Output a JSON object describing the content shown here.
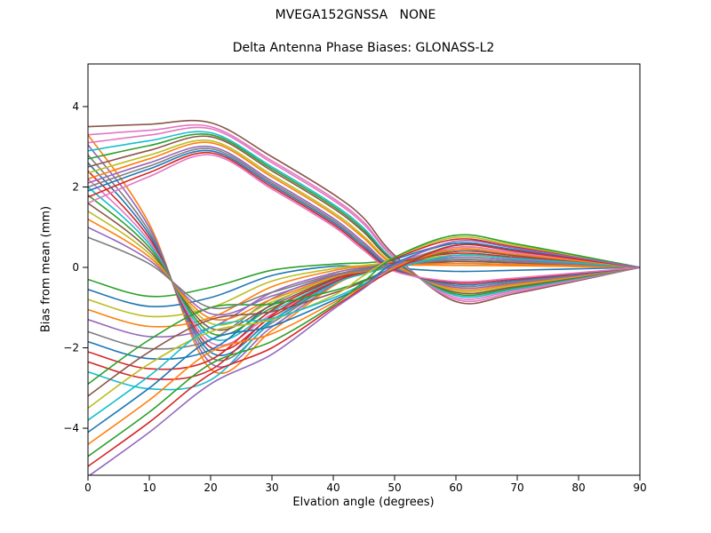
{
  "chart_data": {
    "type": "line",
    "suptitle": "MVEGA152GNSSA   NONE",
    "title": "Delta Antenna Phase Biases: GLONASS-L2",
    "xlabel": "Elvation angle (degrees)",
    "ylabel": "Bias from mean (mm)",
    "xlim": [
      0,
      90
    ],
    "ylim": [
      -5.17,
      5.06
    ],
    "xticks": [
      0,
      10,
      20,
      30,
      40,
      50,
      60,
      70,
      80,
      90
    ],
    "yticks": [
      -4,
      -2,
      0,
      2,
      4
    ],
    "grid": false,
    "legend": "none",
    "line_width": 1.6,
    "palette": [
      "#1f77b4",
      "#ff7f0e",
      "#2ca02c",
      "#d62728",
      "#9467bd",
      "#8c564b",
      "#e377c2",
      "#7f7f7f",
      "#bcbd22",
      "#17becf"
    ],
    "x": [
      0,
      10,
      20,
      30,
      40,
      45,
      50,
      60,
      70,
      90
    ],
    "series": [
      {
        "color": "#8c564b",
        "values": [
          3.5,
          3.56,
          3.6,
          2.75,
          1.82,
          1.22,
          0.3,
          -0.85,
          -0.64,
          0
        ]
      },
      {
        "color": "#ff7f0e",
        "values": [
          3.3,
          1.08,
          -2.53,
          -1.57,
          -0.46,
          -0.15,
          0.05,
          0.5,
          0.36,
          0
        ]
      },
      {
        "color": "#2ca02c",
        "values": [
          -0.3,
          -0.72,
          -0.5,
          -0.07,
          0.08,
          0.11,
          0.16,
          0.15,
          0.11,
          0
        ]
      },
      {
        "color": "#e377c2",
        "values": [
          3.3,
          3.41,
          3.5,
          2.65,
          1.72,
          1.12,
          0.25,
          -0.8,
          -0.6,
          0
        ]
      },
      {
        "color": "#9467bd",
        "values": [
          3.05,
          0.99,
          -2.38,
          -1.48,
          -0.43,
          -0.1,
          0.1,
          0.15,
          0.11,
          0
        ]
      },
      {
        "color": "#1f77b4",
        "values": [
          -0.55,
          -0.97,
          -0.75,
          -0.2,
          0.03,
          0.0,
          -0.02,
          -0.1,
          -0.07,
          0
        ]
      },
      {
        "color": "#e377c2",
        "values": [
          3.1,
          3.29,
          3.45,
          2.6,
          1.67,
          1.07,
          0.23,
          -0.75,
          -0.56,
          0
        ]
      },
      {
        "color": "#7f7f7f",
        "values": [
          2.8,
          0.89,
          -2.23,
          -1.38,
          -0.4,
          -0.12,
          0.06,
          0.4,
          0.29,
          0
        ]
      },
      {
        "color": "#bcbd22",
        "values": [
          -0.8,
          -1.22,
          -1.0,
          -0.34,
          -0.03,
          0.05,
          0.13,
          0.3,
          0.22,
          0
        ]
      },
      {
        "color": "#17becf",
        "values": [
          2.9,
          3.15,
          3.35,
          2.5,
          1.57,
          0.97,
          0.18,
          -0.7,
          -0.53,
          0
        ]
      },
      {
        "color": "#1f77b4",
        "values": [
          2.6,
          0.81,
          -2.11,
          -1.31,
          -0.38,
          -0.08,
          0.1,
          0.1,
          0.07,
          0
        ]
      },
      {
        "color": "#ff7f0e",
        "values": [
          -1.05,
          -1.47,
          -1.25,
          -0.48,
          -0.08,
          0.02,
          0.06,
          0.05,
          0.04,
          0
        ]
      },
      {
        "color": "#2ca02c",
        "values": [
          2.7,
          3.03,
          3.3,
          2.45,
          1.52,
          0.92,
          0.15,
          -0.66,
          -0.5,
          0
        ]
      },
      {
        "color": "#d62728",
        "values": [
          2.4,
          0.73,
          -1.99,
          -1.23,
          -0.36,
          -0.14,
          0.03,
          0.3,
          0.22,
          0
        ]
      },
      {
        "color": "#9467bd",
        "values": [
          -1.3,
          -1.72,
          -1.5,
          -0.62,
          -0.14,
          -0.01,
          0.1,
          0.45,
          0.32,
          0
        ]
      },
      {
        "color": "#8c564b",
        "values": [
          2.5,
          2.91,
          3.25,
          2.4,
          1.47,
          0.87,
          0.13,
          -0.62,
          -0.47,
          0
        ]
      },
      {
        "color": "#e377c2",
        "values": [
          2.2,
          0.65,
          -1.87,
          -1.16,
          -0.34,
          -0.06,
          0.12,
          0.5,
          0.36,
          0
        ]
      },
      {
        "color": "#7f7f7f",
        "values": [
          -1.6,
          -2.02,
          -1.8,
          -0.78,
          -0.2,
          -0.04,
          0.08,
          0.2,
          0.14,
          0
        ]
      },
      {
        "color": "#bcbd22",
        "values": [
          2.35,
          2.79,
          3.15,
          2.3,
          1.37,
          0.77,
          0.08,
          -0.58,
          -0.44,
          0
        ]
      },
      {
        "color": "#17becf",
        "values": [
          2.0,
          0.58,
          -1.75,
          -1.09,
          -0.32,
          -0.1,
          0.05,
          0.2,
          0.14,
          0
        ]
      },
      {
        "color": "#1f77b4",
        "values": [
          -1.85,
          -2.27,
          -2.05,
          -0.92,
          -0.26,
          -0.07,
          0.2,
          0.6,
          0.43,
          0
        ]
      },
      {
        "color": "#ff7f0e",
        "values": [
          2.2,
          2.7,
          3.1,
          2.25,
          1.32,
          0.72,
          0.05,
          -0.54,
          -0.41,
          0
        ]
      },
      {
        "color": "#2ca02c",
        "values": [
          1.8,
          0.5,
          -1.63,
          -1.01,
          -0.29,
          -0.05,
          0.1,
          0.4,
          0.29,
          0
        ]
      },
      {
        "color": "#d62728",
        "values": [
          -2.1,
          -2.52,
          -2.3,
          -1.06,
          -0.31,
          -0.1,
          0.12,
          0.35,
          0.25,
          0
        ]
      },
      {
        "color": "#9467bd",
        "values": [
          2.1,
          2.6,
          3.0,
          2.15,
          1.22,
          0.62,
          0.0,
          -0.5,
          -0.38,
          0
        ]
      },
      {
        "color": "#8c564b",
        "values": [
          1.6,
          0.42,
          -1.51,
          -0.94,
          -0.27,
          -0.12,
          0.02,
          0.15,
          0.11,
          0
        ]
      },
      {
        "color": "#d62728",
        "values": [
          -2.35,
          -2.77,
          -2.55,
          -1.19,
          -0.37,
          -0.13,
          0.22,
          0.7,
          0.5,
          0
        ]
      },
      {
        "color": "#7f7f7f",
        "values": [
          2.0,
          2.52,
          2.95,
          2.1,
          1.17,
          0.57,
          -0.03,
          -0.46,
          -0.35,
          0
        ]
      },
      {
        "color": "#bcbd22",
        "values": [
          1.4,
          0.34,
          -1.39,
          -0.86,
          -0.25,
          -0.07,
          0.08,
          0.3,
          0.22,
          0
        ]
      },
      {
        "color": "#17becf",
        "values": [
          -2.6,
          -3.02,
          -2.8,
          -1.33,
          -0.42,
          -0.16,
          0.02,
          0.25,
          0.18,
          0
        ]
      },
      {
        "color": "#1f77b4",
        "values": [
          1.9,
          2.45,
          2.9,
          2.05,
          1.12,
          0.52,
          -0.05,
          -0.42,
          -0.32,
          0
        ]
      },
      {
        "color": "#ff7f0e",
        "values": [
          1.2,
          0.26,
          -1.27,
          -0.79,
          -0.23,
          -0.1,
          0.04,
          0.1,
          0.07,
          0
        ]
      },
      {
        "color": "#2ca02c",
        "values": [
          -2.9,
          -1.8,
          -1.0,
          -0.91,
          -0.58,
          -0.32,
          0.0,
          0.55,
          0.4,
          0
        ]
      },
      {
        "color": "#d62728",
        "values": [
          1.75,
          2.36,
          2.85,
          2.0,
          1.07,
          0.47,
          -0.08,
          -0.38,
          -0.29,
          0
        ]
      },
      {
        "color": "#9467bd",
        "values": [
          1.0,
          0.18,
          -1.15,
          -0.71,
          -0.21,
          -0.06,
          0.08,
          0.25,
          0.18,
          0
        ]
      },
      {
        "color": "#8c564b",
        "values": [
          -3.2,
          -2.1,
          -1.3,
          -1.1,
          -0.64,
          -0.35,
          -0.01,
          0.4,
          0.29,
          0
        ]
      },
      {
        "color": "#e377c2",
        "values": [
          1.6,
          2.26,
          2.8,
          1.95,
          1.02,
          0.42,
          -0.1,
          -0.35,
          -0.26,
          0
        ]
      },
      {
        "color": "#7f7f7f",
        "values": [
          0.75,
          0.09,
          -1.0,
          -0.62,
          -0.18,
          -0.08,
          0.05,
          0.2,
          0.14,
          0
        ]
      },
      {
        "color": "#bcbd22",
        "values": [
          -3.5,
          -2.4,
          -1.6,
          -1.3,
          -0.7,
          -0.2,
          0.25,
          0.75,
          0.54,
          0
        ]
      },
      {
        "color": "#17becf",
        "values": [
          -3.8,
          -2.7,
          -1.5,
          -1.27,
          -0.76,
          -0.41,
          -0.04,
          0.3,
          0.22,
          0
        ]
      },
      {
        "color": "#1f77b4",
        "values": [
          -4.1,
          -3.0,
          -1.8,
          -1.46,
          -0.82,
          -0.44,
          0.1,
          0.6,
          0.43,
          0
        ]
      },
      {
        "color": "#ff7f0e",
        "values": [
          -4.4,
          -3.3,
          -2.1,
          -1.65,
          -0.88,
          -0.47,
          0.0,
          0.45,
          0.32,
          0
        ]
      },
      {
        "color": "#2ca02c",
        "values": [
          -4.7,
          -3.6,
          -2.4,
          -1.84,
          -0.94,
          -0.35,
          0.25,
          0.8,
          0.58,
          0
        ]
      },
      {
        "color": "#d62728",
        "values": [
          -4.95,
          -3.85,
          -2.65,
          -2.0,
          -0.99,
          -0.5,
          -0.05,
          0.55,
          0.4,
          0
        ]
      },
      {
        "color": "#9467bd",
        "values": [
          -5.2,
          -4.1,
          -2.9,
          -2.16,
          -1.04,
          -0.52,
          0.05,
          0.65,
          0.47,
          0
        ]
      }
    ]
  }
}
